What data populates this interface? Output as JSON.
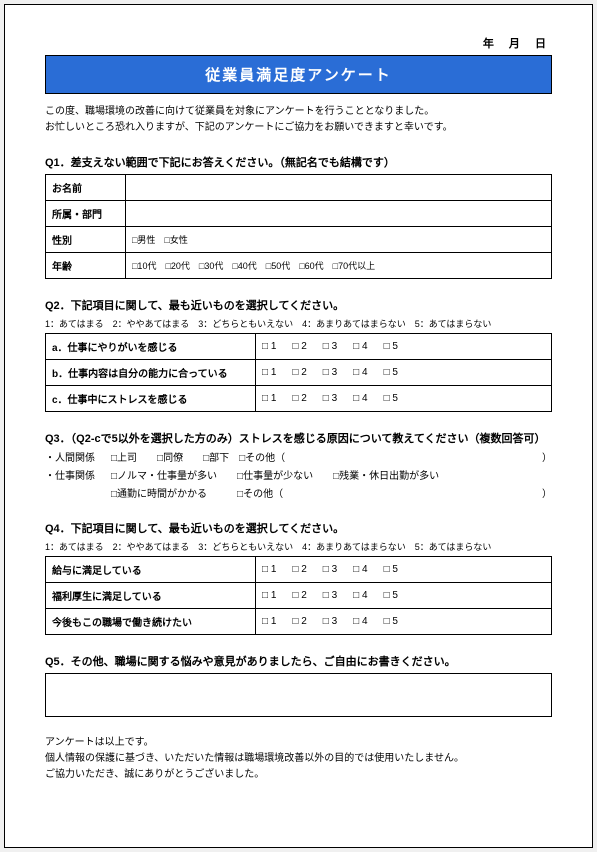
{
  "date_label": "年 月 日",
  "title": "従業員満足度アンケート",
  "intro_line1": "この度、職場環境の改善に向けて従業員を対象にアンケートを行うこととなりました。",
  "intro_line2": "お忙しいところ恐れ入りますが、下記のアンケートにご協力をお願いできますと幸いです。",
  "q1": {
    "heading": "Q1．差支えない範囲で下記にお答えください。（無記名でも結構です）",
    "rows": {
      "name_label": "お名前",
      "dept_label": "所属・部門",
      "gender_label": "性別",
      "gender_opts": "□男性　□女性",
      "age_label": "年齢",
      "age_opts": "□10代　□20代　□30代　□40代　□50代　□60代　□70代以上"
    }
  },
  "q2": {
    "heading": "Q2．下記項目に関して、最も近いものを選択してください。",
    "legend": "1：あてはまる　2：ややあてはまる　3：どちらともいえない　4：あまりあてはまらない　5：あてはまらない",
    "rows": [
      "a．仕事にやりがいを感じる",
      "b．仕事内容は自分の能力に合っている",
      "c．仕事中にストレスを感じる"
    ],
    "scale": [
      "□ 1",
      "□ 2",
      "□ 3",
      "□ 4",
      "□ 5"
    ]
  },
  "q3": {
    "heading": "Q3．（Q2-cで5以外を選択した方のみ）ストレスを感じる原因について教えてください（複数回答可）",
    "row1_lead": "・人間関係",
    "row1_opts": "□上司　　□同僚　　□部下　□その他（",
    "row2_lead": "・仕事関係",
    "row2_opts": "□ノルマ・仕事量が多い　　□仕事量が少ない　　□残業・休日出勤が多い",
    "row3_opts": "□通勤に時間がかかる　　　□その他（",
    "paren": "）"
  },
  "q4": {
    "heading": "Q4．下記項目に関して、最も近いものを選択してください。",
    "legend": "1：あてはまる　2：ややあてはまる　3：どちらともいえない　4：あまりあてはまらない　5：あてはまらない",
    "rows": [
      "給与に満足している",
      "福利厚生に満足している",
      "今後もこの職場で働き続けたい"
    ],
    "scale": [
      "□ 1",
      "□ 2",
      "□ 3",
      "□ 4",
      "□ 5"
    ]
  },
  "q5": {
    "heading": "Q5．その他、職場に関する悩みや意見がありましたら、ご自由にお書きください。"
  },
  "closing": {
    "l1": "アンケートは以上です。",
    "l2": "個人情報の保護に基づき、いただいた情報は職場環境改善以外の目的では使用いたしません。",
    "l3": "ご協力いただき、誠にありがとうございました。"
  }
}
